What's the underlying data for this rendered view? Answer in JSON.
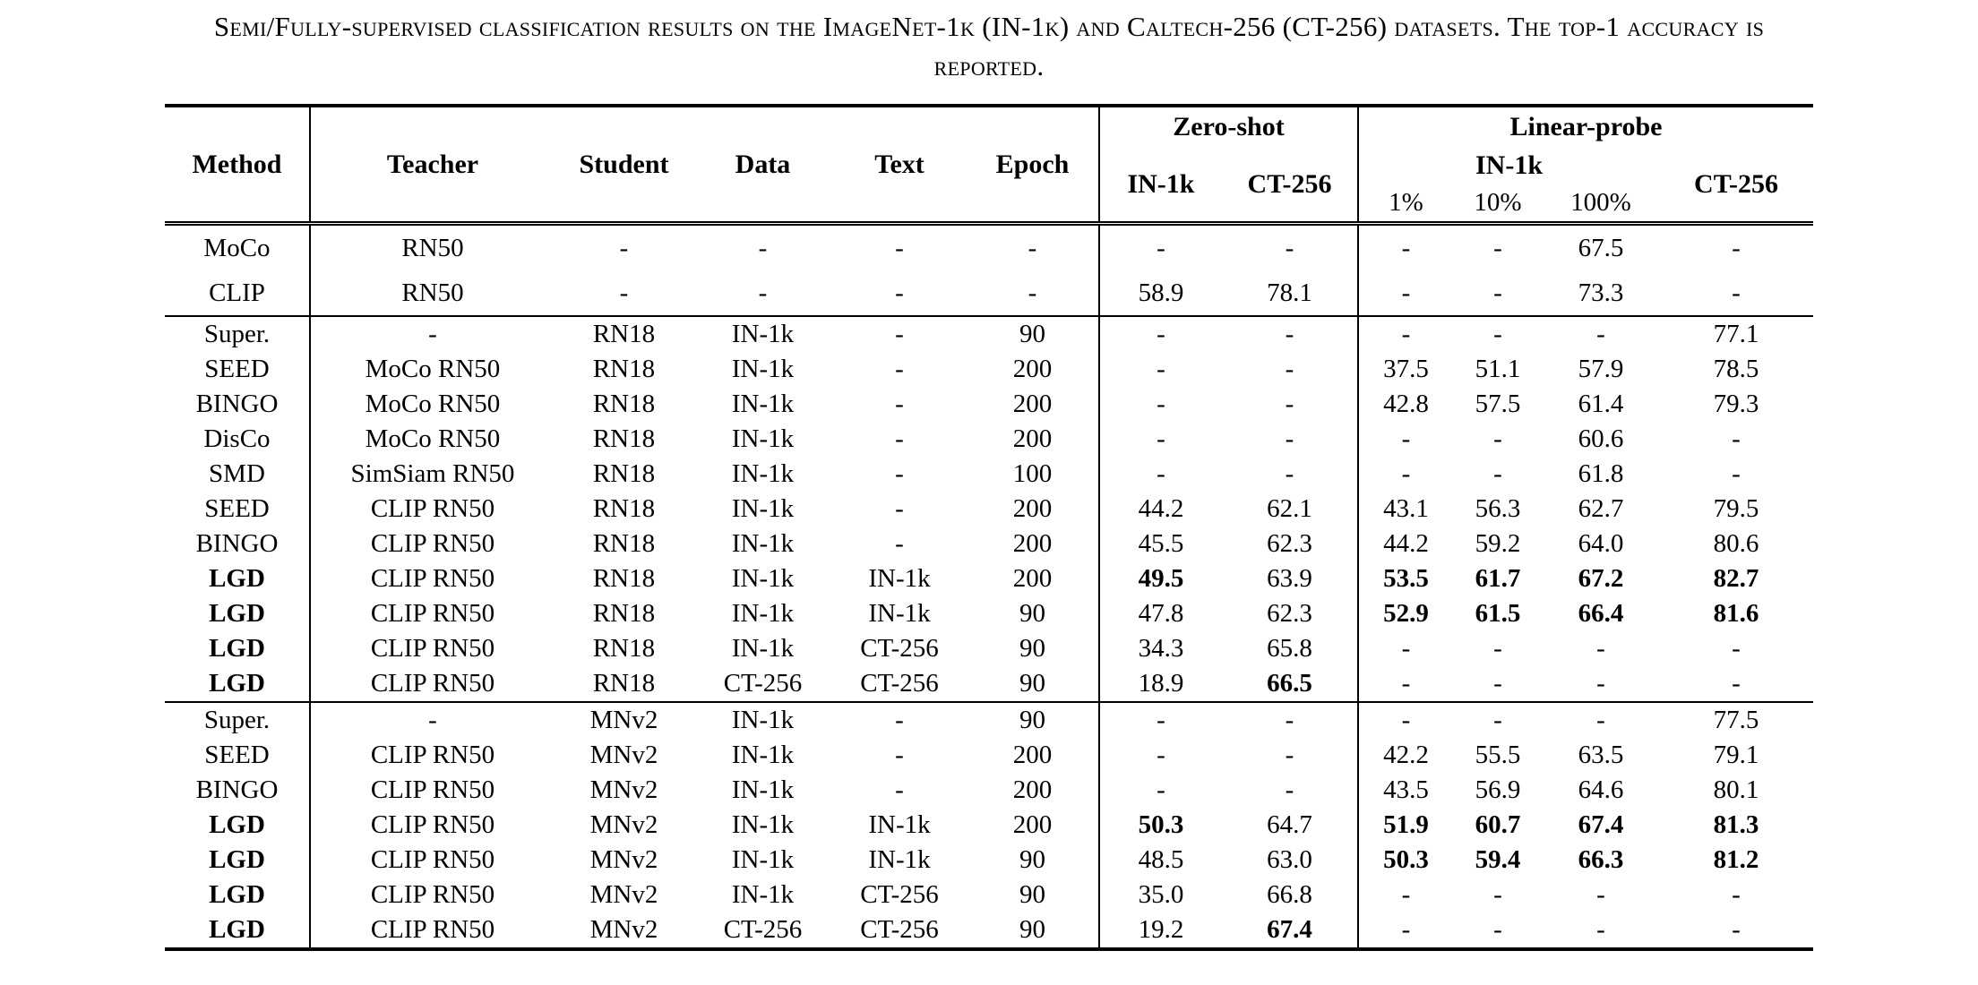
{
  "caption": {
    "line1": "Semi/Fully-supervised classification results on the ImageNet-1k (IN-1k) and Caltech-256 (CT-256) datasets. The top-1 accuracy is",
    "line2": "reported."
  },
  "colors": {
    "text": "#000000",
    "background": "#ffffff",
    "rule": "#000000"
  },
  "table": {
    "header": {
      "method": "Method",
      "teacher": "Teacher",
      "student": "Student",
      "data": "Data",
      "text": "Text",
      "epoch": "Epoch",
      "zero_shot": "Zero-shot",
      "linear_probe": "Linear-probe",
      "zs_in1k": "IN-1k",
      "zs_ct256": "CT-256",
      "lp_in1k": "IN-1k",
      "lp_1": "1%",
      "lp_10": "10%",
      "lp_100": "100%",
      "lp_ct256": "CT-256"
    },
    "groups": [
      {
        "rows": [
          {
            "cells": [
              "MoCo",
              "RN50",
              "-",
              "-",
              "-",
              "-",
              "-",
              "-",
              "-",
              "-",
              "67.5",
              "-"
            ],
            "bold": []
          },
          {
            "cells": [
              "CLIP",
              "RN50",
              "-",
              "-",
              "-",
              "-",
              "58.9",
              "78.1",
              "-",
              "-",
              "73.3",
              "-"
            ],
            "bold": []
          }
        ]
      },
      {
        "rows": [
          {
            "cells": [
              "Super.",
              "-",
              "RN18",
              "IN-1k",
              "-",
              "90",
              "-",
              "-",
              "-",
              "-",
              "-",
              "77.1"
            ],
            "bold": []
          },
          {
            "cells": [
              "SEED",
              "MoCo RN50",
              "RN18",
              "IN-1k",
              "-",
              "200",
              "-",
              "-",
              "37.5",
              "51.1",
              "57.9",
              "78.5"
            ],
            "bold": []
          },
          {
            "cells": [
              "BINGO",
              "MoCo RN50",
              "RN18",
              "IN-1k",
              "-",
              "200",
              "-",
              "-",
              "42.8",
              "57.5",
              "61.4",
              "79.3"
            ],
            "bold": []
          },
          {
            "cells": [
              "DisCo",
              "MoCo RN50",
              "RN18",
              "IN-1k",
              "-",
              "200",
              "-",
              "-",
              "-",
              "-",
              "60.6",
              "-"
            ],
            "bold": []
          },
          {
            "cells": [
              "SMD",
              "SimSiam RN50",
              "RN18",
              "IN-1k",
              "-",
              "100",
              "-",
              "-",
              "-",
              "-",
              "61.8",
              "-"
            ],
            "bold": []
          },
          {
            "cells": [
              "SEED",
              "CLIP RN50",
              "RN18",
              "IN-1k",
              "-",
              "200",
              "44.2",
              "62.1",
              "43.1",
              "56.3",
              "62.7",
              "79.5"
            ],
            "bold": []
          },
          {
            "cells": [
              "BINGO",
              "CLIP RN50",
              "RN18",
              "IN-1k",
              "-",
              "200",
              "45.5",
              "62.3",
              "44.2",
              "59.2",
              "64.0",
              "80.6"
            ],
            "bold": []
          },
          {
            "cells": [
              "LGD",
              "CLIP RN50",
              "RN18",
              "IN-1k",
              "IN-1k",
              "200",
              "49.5",
              "63.9",
              "53.5",
              "61.7",
              "67.2",
              "82.7"
            ],
            "bold": [
              0,
              6,
              8,
              9,
              10,
              11
            ]
          },
          {
            "cells": [
              "LGD",
              "CLIP RN50",
              "RN18",
              "IN-1k",
              "IN-1k",
              "90",
              "47.8",
              "62.3",
              "52.9",
              "61.5",
              "66.4",
              "81.6"
            ],
            "bold": [
              0,
              8,
              9,
              10,
              11
            ]
          },
          {
            "cells": [
              "LGD",
              "CLIP RN50",
              "RN18",
              "IN-1k",
              "CT-256",
              "90",
              "34.3",
              "65.8",
              "-",
              "-",
              "-",
              "-"
            ],
            "bold": [
              0
            ]
          },
          {
            "cells": [
              "LGD",
              "CLIP RN50",
              "RN18",
              "CT-256",
              "CT-256",
              "90",
              "18.9",
              "66.5",
              "-",
              "-",
              "-",
              "-"
            ],
            "bold": [
              0,
              7
            ]
          }
        ]
      },
      {
        "rows": [
          {
            "cells": [
              "Super.",
              "-",
              "MNv2",
              "IN-1k",
              "-",
              "90",
              "-",
              "-",
              "-",
              "-",
              "-",
              "77.5"
            ],
            "bold": []
          },
          {
            "cells": [
              "SEED",
              "CLIP RN50",
              "MNv2",
              "IN-1k",
              "-",
              "200",
              "-",
              "-",
              "42.2",
              "55.5",
              "63.5",
              "79.1"
            ],
            "bold": []
          },
          {
            "cells": [
              "BINGO",
              "CLIP RN50",
              "MNv2",
              "IN-1k",
              "-",
              "200",
              "-",
              "-",
              "43.5",
              "56.9",
              "64.6",
              "80.1"
            ],
            "bold": []
          },
          {
            "cells": [
              "LGD",
              "CLIP RN50",
              "MNv2",
              "IN-1k",
              "IN-1k",
              "200",
              "50.3",
              "64.7",
              "51.9",
              "60.7",
              "67.4",
              "81.3"
            ],
            "bold": [
              0,
              6,
              8,
              9,
              10,
              11
            ]
          },
          {
            "cells": [
              "LGD",
              "CLIP RN50",
              "MNv2",
              "IN-1k",
              "IN-1k",
              "90",
              "48.5",
              "63.0",
              "50.3",
              "59.4",
              "66.3",
              "81.2"
            ],
            "bold": [
              0,
              8,
              9,
              10,
              11
            ]
          },
          {
            "cells": [
              "LGD",
              "CLIP RN50",
              "MNv2",
              "IN-1k",
              "CT-256",
              "90",
              "35.0",
              "66.8",
              "-",
              "-",
              "-",
              "-"
            ],
            "bold": [
              0
            ]
          },
          {
            "cells": [
              "LGD",
              "CLIP RN50",
              "MNv2",
              "CT-256",
              "CT-256",
              "90",
              "19.2",
              "67.4",
              "-",
              "-",
              "-",
              "-"
            ],
            "bold": [
              0,
              7
            ]
          }
        ]
      }
    ]
  }
}
